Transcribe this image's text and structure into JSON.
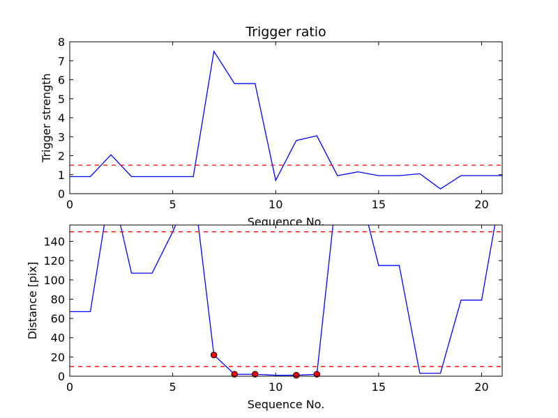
{
  "chart_data": [
    {
      "type": "line",
      "title": "Trigger ratio",
      "xlabel": "Sequence No.",
      "ylabel": "Trigger strength",
      "xlim": [
        0,
        21
      ],
      "ylim": [
        0,
        8
      ],
      "xticks": [
        0,
        5,
        10,
        15,
        20
      ],
      "yticks": [
        0,
        1,
        2,
        3,
        4,
        5,
        6,
        7,
        8
      ],
      "grid": false,
      "series": [
        {
          "color": "#0000ff",
          "style": "solid",
          "x": [
            0,
            1,
            2,
            3,
            4,
            5,
            6,
            7,
            8,
            9,
            10,
            11,
            12,
            13,
            14,
            15,
            16,
            17,
            18,
            19,
            20,
            21
          ],
          "y": [
            0.9,
            0.9,
            2.05,
            0.9,
            0.9,
            0.9,
            0.9,
            7.5,
            5.8,
            5.8,
            0.7,
            2.8,
            3.05,
            0.95,
            1.15,
            0.95,
            0.95,
            1.05,
            0.25,
            0.95,
            0.95,
            0.95
          ]
        },
        {
          "color": "#ff0000",
          "style": "dashed",
          "x": [
            0,
            21
          ],
          "y": [
            1.5,
            1.5
          ]
        }
      ]
    },
    {
      "type": "line",
      "title": "",
      "xlabel": "Sequence No.",
      "ylabel": "Distance [pix]",
      "xlim": [
        0,
        21
      ],
      "ylim": [
        0,
        157
      ],
      "xticks": [
        0,
        5,
        10,
        15,
        20
      ],
      "yticks": [
        0,
        20,
        40,
        60,
        80,
        100,
        120,
        140
      ],
      "grid": false,
      "series": [
        {
          "color": "#0000ff",
          "style": "solid",
          "x": [
            0,
            1,
            2,
            3,
            4,
            5,
            6,
            7,
            8,
            9,
            10,
            11,
            12,
            13,
            14,
            15,
            16,
            17,
            18,
            19,
            20,
            21
          ],
          "y": [
            67,
            67,
            200,
            107,
            107,
            150,
            200,
            22,
            2,
            2,
            1,
            1,
            2,
            200,
            200,
            115,
            115,
            3,
            3,
            79,
            79,
            200
          ]
        },
        {
          "color": "#ff0000",
          "style": "dashed",
          "x": [
            0,
            21
          ],
          "y": [
            150,
            150
          ]
        },
        {
          "color": "#ff0000",
          "style": "dashed",
          "x": [
            0,
            21
          ],
          "y": [
            10,
            10
          ]
        },
        {
          "color": "#ff0000",
          "style": "markers",
          "marker_edge": "#000000",
          "x": [
            7,
            8,
            9,
            11,
            12
          ],
          "y": [
            22,
            2,
            2,
            1,
            2
          ]
        }
      ]
    }
  ]
}
